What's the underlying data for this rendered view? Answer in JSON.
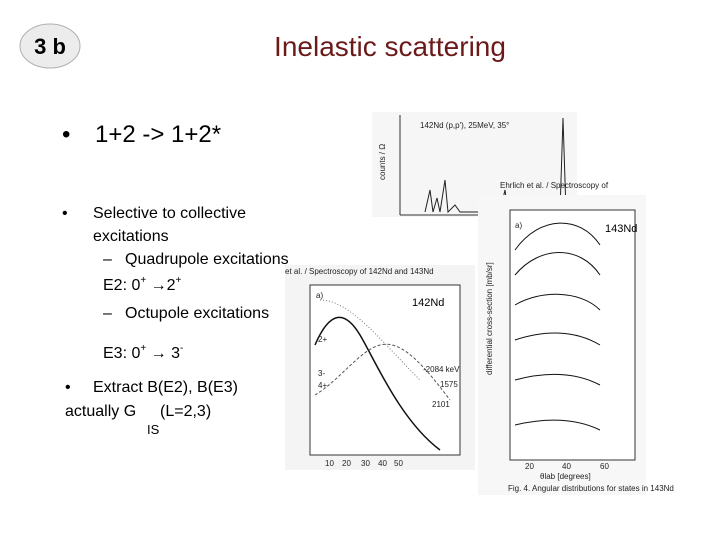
{
  "badge": "3 b",
  "title": "Inelastic scattering",
  "main_bullet": {
    "marker": "•",
    "text": "1+2 -> 1+2*"
  },
  "sub_bullet": {
    "marker": "•",
    "lines": [
      "Selective to collective",
      "excitations"
    ]
  },
  "items": [
    {
      "dash": "–",
      "text": "Quadrupole excitations",
      "transition": [
        "E2: 0",
        "+",
        " →2",
        "+"
      ]
    },
    {
      "dash": "–",
      "text": "Octupole excitations",
      "transition": [
        "E3: 0",
        "+",
        " → 3",
        "-"
      ]
    }
  ],
  "extract": {
    "marker": "•",
    "text": "Extract B(E2), B(E3)",
    "line2": "actually G",
    "subscript": "IS",
    "after": "(L=2,3)"
  },
  "figures": {
    "spectrum": {
      "label": "142Nd (p,p'), 25MeV, 35°",
      "y_axis": "counts / Ω",
      "citation": "Ehrlich et al. / Spectroscopy of"
    },
    "angular_142": {
      "header": "et al. / Spectroscopy of 142Nd and 143Nd",
      "panel": "a)",
      "nucleus": "142Nd",
      "states": [
        "2+",
        "3-",
        "4+"
      ],
      "energies": [
        "-2084 keV",
        "1575",
        "2101"
      ],
      "x_ticks": [
        "10",
        "20",
        "30",
        "40",
        "50"
      ]
    },
    "angular_143": {
      "panel": "a)",
      "nucleus": "143Nd",
      "y_axis": "differential cross-section [mb/sr]",
      "x_axis": "θlab [degrees]",
      "x_ticks": [
        "20",
        "40",
        "60"
      ],
      "caption": "Fig. 4. Angular distributions for states in 143Nd"
    }
  }
}
